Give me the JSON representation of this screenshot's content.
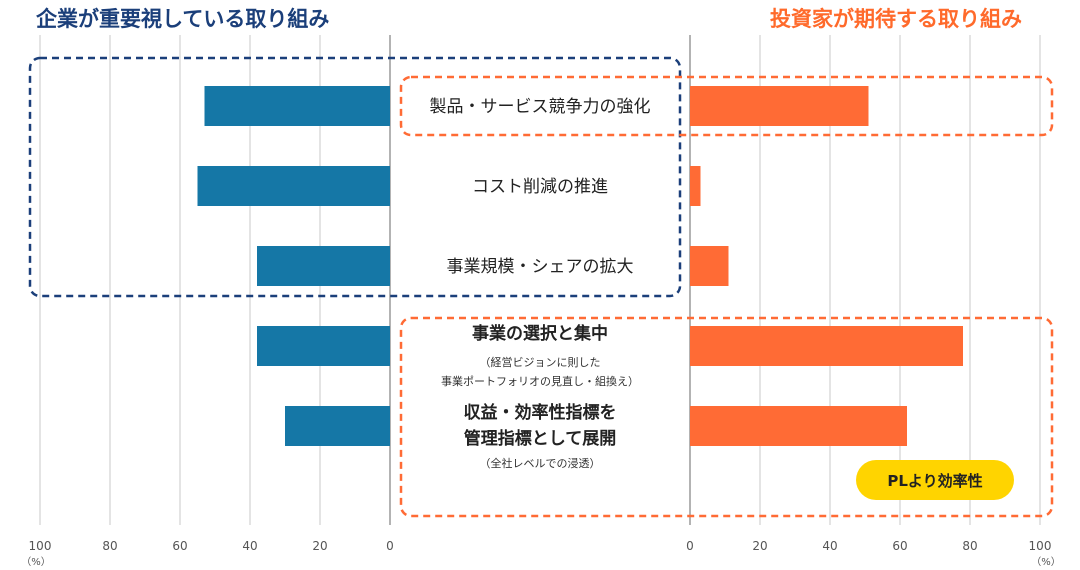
{
  "header": {
    "left_title": "企業が重要視している取り組み",
    "right_title": "投資家が期待する取り組み"
  },
  "badge": {
    "label": "PLより効率性"
  },
  "colors": {
    "company": "#1577a6",
    "investor": "#ff6b35",
    "company_frame": "#1b3f7a",
    "investor_frame": "#ff6b35",
    "badge": "#ffd400"
  },
  "chart_data": {
    "type": "bar",
    "orientation": "horizontal-butterfly",
    "categories": [
      {
        "label": "製品・サービス競争力の強化",
        "bold": false,
        "note_lines": []
      },
      {
        "label": "コスト削減の推進",
        "bold": false,
        "note_lines": []
      },
      {
        "label": "事業規模・シェアの拡大",
        "bold": false,
        "note_lines": []
      },
      {
        "label": "事業の選択と集中",
        "bold": true,
        "note_lines": [
          "（経営ビジョンに則した",
          "事業ポートフォリオの見直し・組換え）"
        ]
      },
      {
        "label_lines": [
          "収益・効率性指標を",
          "管理指標として展開"
        ],
        "bold": true,
        "note_lines": [
          "（全社レベルでの浸透）"
        ]
      }
    ],
    "series": [
      {
        "values": [
          53,
          55,
          38,
          38,
          30
        ]
      },
      {
        "values": [
          51,
          3,
          11,
          78,
          62
        ]
      }
    ],
    "left_axis": {
      "ticks": [
        "100",
        "80",
        "60",
        "40",
        "20",
        "0"
      ],
      "unit": "（%）",
      "range": [
        100,
        0
      ]
    },
    "right_axis": {
      "ticks": [
        "0",
        "20",
        "40",
        "60",
        "80",
        "100"
      ],
      "unit": "（%）",
      "range": [
        0,
        100
      ]
    },
    "grid": true
  }
}
